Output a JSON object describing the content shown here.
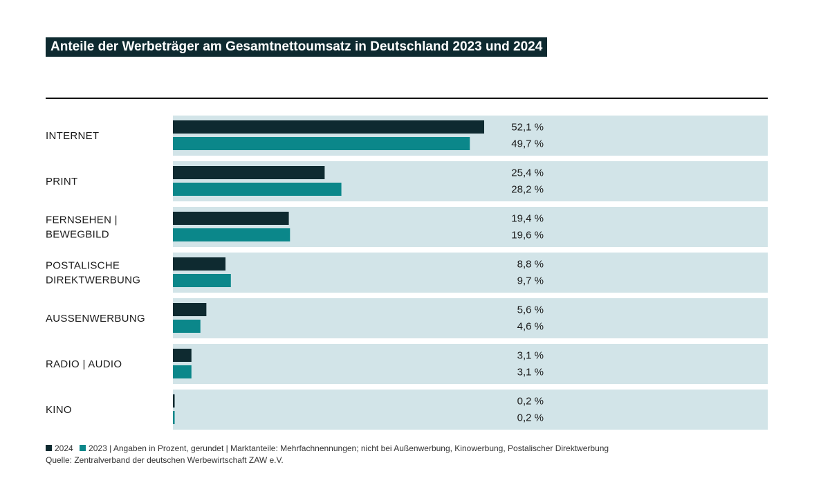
{
  "title": "Anteile der Werbeträger am Gesamtnettoumsatz in Deutschland 2023 und 2024",
  "colors": {
    "series_2024": "#0e2a30",
    "series_2023": "#0b878a",
    "row_background": "#d2e4e8",
    "title_background": "#0e2a30"
  },
  "legend": {
    "label_2024": "2024",
    "label_2023": "2023 | Angaben in Prozent, gerundet | Marktanteile: Mehrfachnennungen; nicht bei Außenwerbung, Kinowerbung, Postalischer Direktwerbung",
    "source": "Quelle: Zentralverband der deutschen Werbewirtschaft ZAW e.V."
  },
  "chart_data": {
    "type": "bar",
    "orientation": "horizontal",
    "title": "Anteile der Werbeträger am Gesamtnettoumsatz in Deutschland 2023 und 2024",
    "categories": [
      [
        "INTERNET"
      ],
      [
        "PRINT"
      ],
      [
        "FERNSEHEN |",
        "BEWEGBILD"
      ],
      [
        "POSTALISCHE",
        "DIREKTWERBUNG"
      ],
      [
        "AUSSENWERBUNG"
      ],
      [
        "RADIO | AUDIO"
      ],
      [
        "KINO"
      ]
    ],
    "series": [
      {
        "name": "2024",
        "values": [
          52.1,
          25.4,
          19.4,
          8.8,
          5.6,
          3.1,
          0.2
        ],
        "labels": [
          "52,1 %",
          "25,4 %",
          "19,4 %",
          "8,8 %",
          "5,6 %",
          "3,1 %",
          "0,2 %"
        ]
      },
      {
        "name": "2023",
        "values": [
          49.7,
          28.2,
          19.6,
          9.7,
          4.6,
          3.1,
          0.2
        ],
        "labels": [
          "49,7 %",
          "28,2 %",
          "19,6 %",
          "9,7 %",
          "4,6 %",
          "3,1 %",
          "0,2 %"
        ]
      }
    ],
    "xlim": [
      0,
      100
    ],
    "grid": false,
    "legend_position": "bottom-left",
    "unit": "%"
  }
}
